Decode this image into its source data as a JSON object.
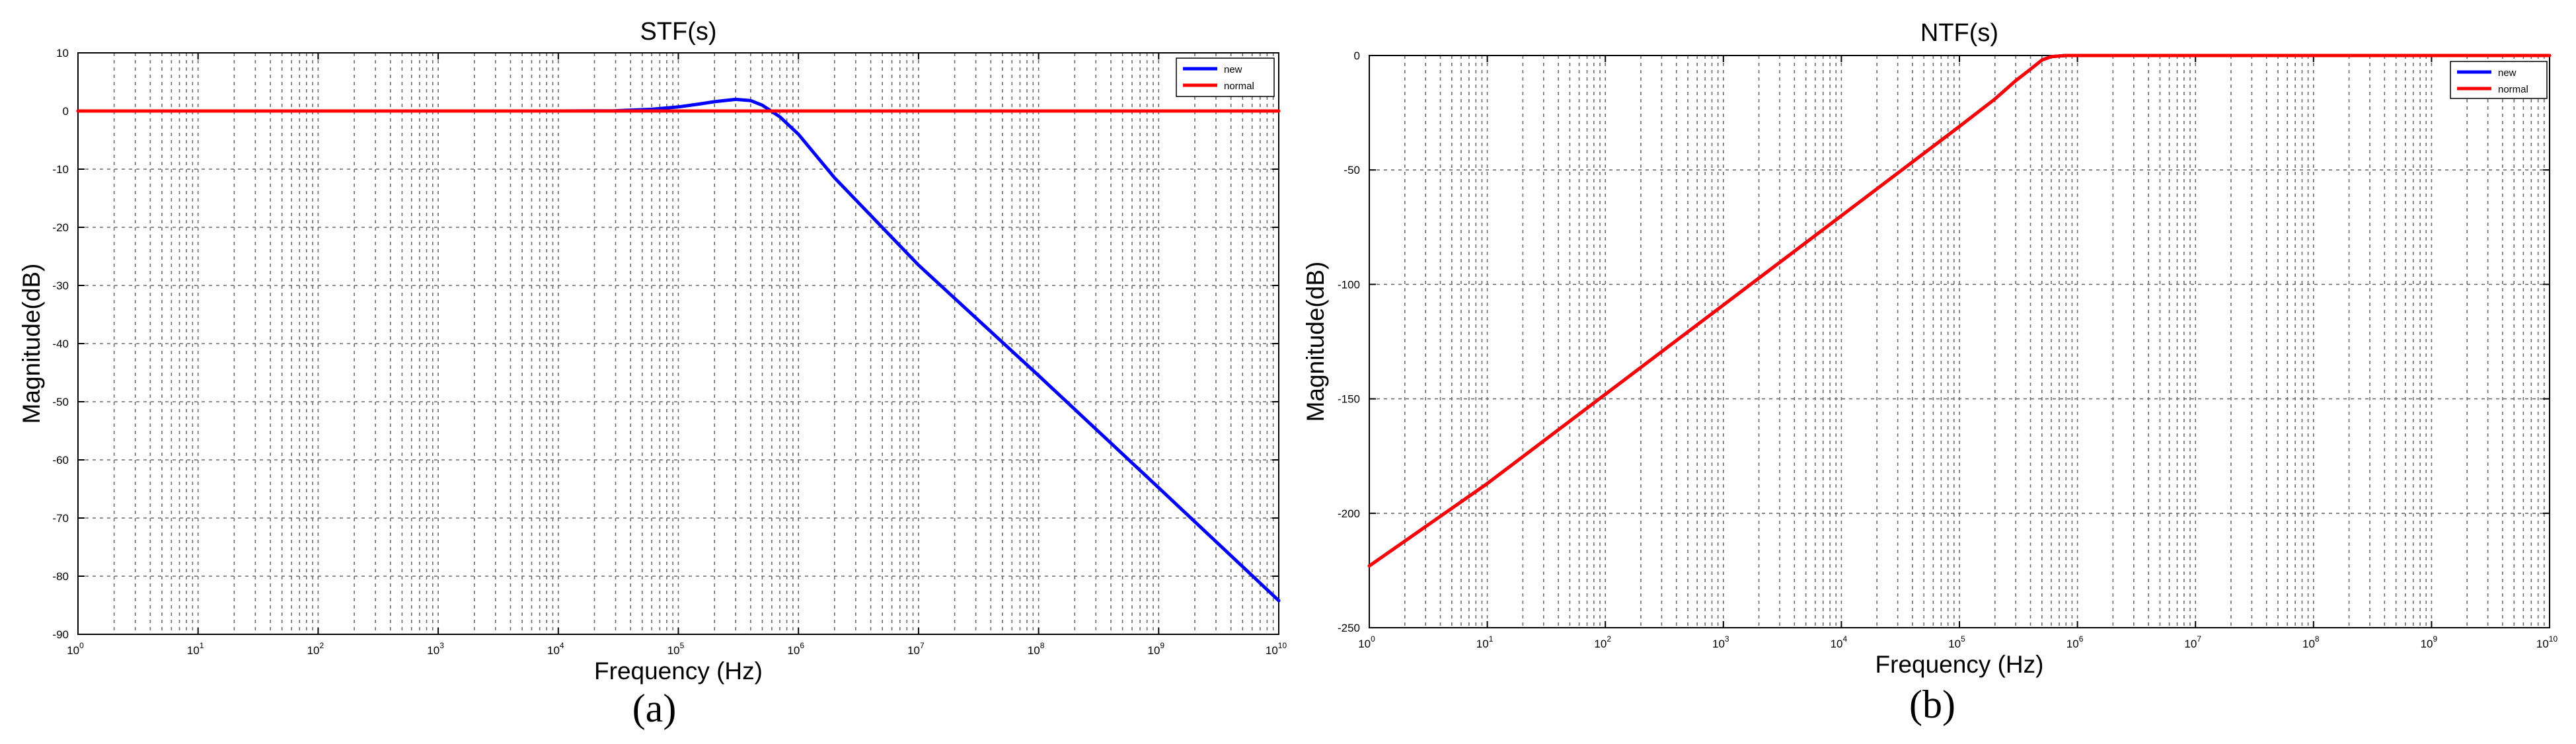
{
  "chart_data": [
    {
      "type": "line",
      "panel_label": "(a)",
      "title": "STF(s)",
      "xlabel": "Frequency (Hz)",
      "ylabel": "Magnitude(dB)",
      "xscale": "log",
      "xlim": [
        1,
        10000000000
      ],
      "ylim": [
        -90,
        10
      ],
      "xticks": [
        1,
        10,
        100,
        1000,
        10000,
        100000,
        1000000,
        10000000,
        100000000,
        1000000000,
        10000000000
      ],
      "xtick_labels": [
        {
          "base": "10",
          "exp": "0"
        },
        {
          "base": "10",
          "exp": "1"
        },
        {
          "base": "10",
          "exp": "2"
        },
        {
          "base": "10",
          "exp": "3"
        },
        {
          "base": "10",
          "exp": "4"
        },
        {
          "base": "10",
          "exp": "5"
        },
        {
          "base": "10",
          "exp": "6"
        },
        {
          "base": "10",
          "exp": "7"
        },
        {
          "base": "10",
          "exp": "8"
        },
        {
          "base": "10",
          "exp": "9"
        },
        {
          "base": "10",
          "exp": "10"
        }
      ],
      "yticks": [
        10,
        0,
        -10,
        -20,
        -30,
        -40,
        -50,
        -60,
        -70,
        -80,
        -90
      ],
      "ytick_labels": [
        "10",
        "0",
        "-10",
        "-20",
        "-30",
        "-40",
        "-50",
        "-60",
        "-70",
        "-80",
        "-90"
      ],
      "grid": true,
      "legend_position": "top-right",
      "series": [
        {
          "name": "new",
          "color": "#0000ff",
          "x": [
            1,
            10,
            100,
            1000,
            10000,
            30000,
            60000,
            100000,
            150000,
            200000,
            300000,
            400000,
            500000,
            700000,
            1000000,
            2000000,
            10000000,
            100000000,
            1000000000,
            10000000000
          ],
          "y": [
            0,
            0,
            0,
            0,
            0,
            0.05,
            0.3,
            0.7,
            1.2,
            1.6,
            2.0,
            1.8,
            1.0,
            -1.0,
            -4.0,
            -11.5,
            -26.5,
            -45.5,
            -64.8,
            -84.2
          ]
        },
        {
          "name": "normal",
          "color": "#ff0000",
          "x": [
            1,
            10000000000
          ],
          "y": [
            0,
            0
          ]
        }
      ]
    },
    {
      "type": "line",
      "panel_label": "(b)",
      "title": "NTF(s)",
      "xlabel": "Frequency (Hz)",
      "ylabel": "Magnitude(dB)",
      "xscale": "log",
      "xlim": [
        1,
        10000000000
      ],
      "ylim": [
        -250,
        0
      ],
      "xticks": [
        1,
        10,
        100,
        1000,
        10000,
        100000,
        1000000,
        10000000,
        100000000,
        1000000000,
        10000000000
      ],
      "xtick_labels": [
        {
          "base": "10",
          "exp": "0"
        },
        {
          "base": "10",
          "exp": "1"
        },
        {
          "base": "10",
          "exp": "2"
        },
        {
          "base": "10",
          "exp": "3"
        },
        {
          "base": "10",
          "exp": "4"
        },
        {
          "base": "10",
          "exp": "5"
        },
        {
          "base": "10",
          "exp": "6"
        },
        {
          "base": "10",
          "exp": "7"
        },
        {
          "base": "10",
          "exp": "8"
        },
        {
          "base": "10",
          "exp": "9"
        },
        {
          "base": "10",
          "exp": "10"
        }
      ],
      "yticks": [
        0,
        -50,
        -100,
        -150,
        -200,
        -250
      ],
      "ytick_labels": [
        "0",
        "-50",
        "-100",
        "-150",
        "-200",
        "-250"
      ],
      "grid": true,
      "legend_position": "top-right",
      "series": [
        {
          "name": "new",
          "color": "#0000ff",
          "x": [
            1,
            10,
            100,
            1000,
            10000,
            100000,
            200000,
            300000,
            400000,
            500000,
            600000,
            800000,
            1000000,
            10000000,
            100000000,
            1000000000,
            10000000000
          ],
          "y": [
            -223,
            -187,
            -148,
            -109,
            -70,
            -31,
            -19,
            -11,
            -6,
            -2,
            -0.5,
            0,
            0,
            0,
            0,
            0,
            0
          ]
        },
        {
          "name": "normal",
          "color": "#ff0000",
          "x": [
            1,
            10,
            100,
            1000,
            10000,
            100000,
            200000,
            300000,
            400000,
            500000,
            600000,
            800000,
            1000000,
            10000000,
            100000000,
            1000000000,
            10000000000
          ],
          "y": [
            -223,
            -187,
            -148,
            -109,
            -70,
            -31,
            -19,
            -11,
            -6,
            -2,
            -0.5,
            0,
            0,
            0,
            0,
            0,
            0
          ]
        }
      ]
    }
  ]
}
